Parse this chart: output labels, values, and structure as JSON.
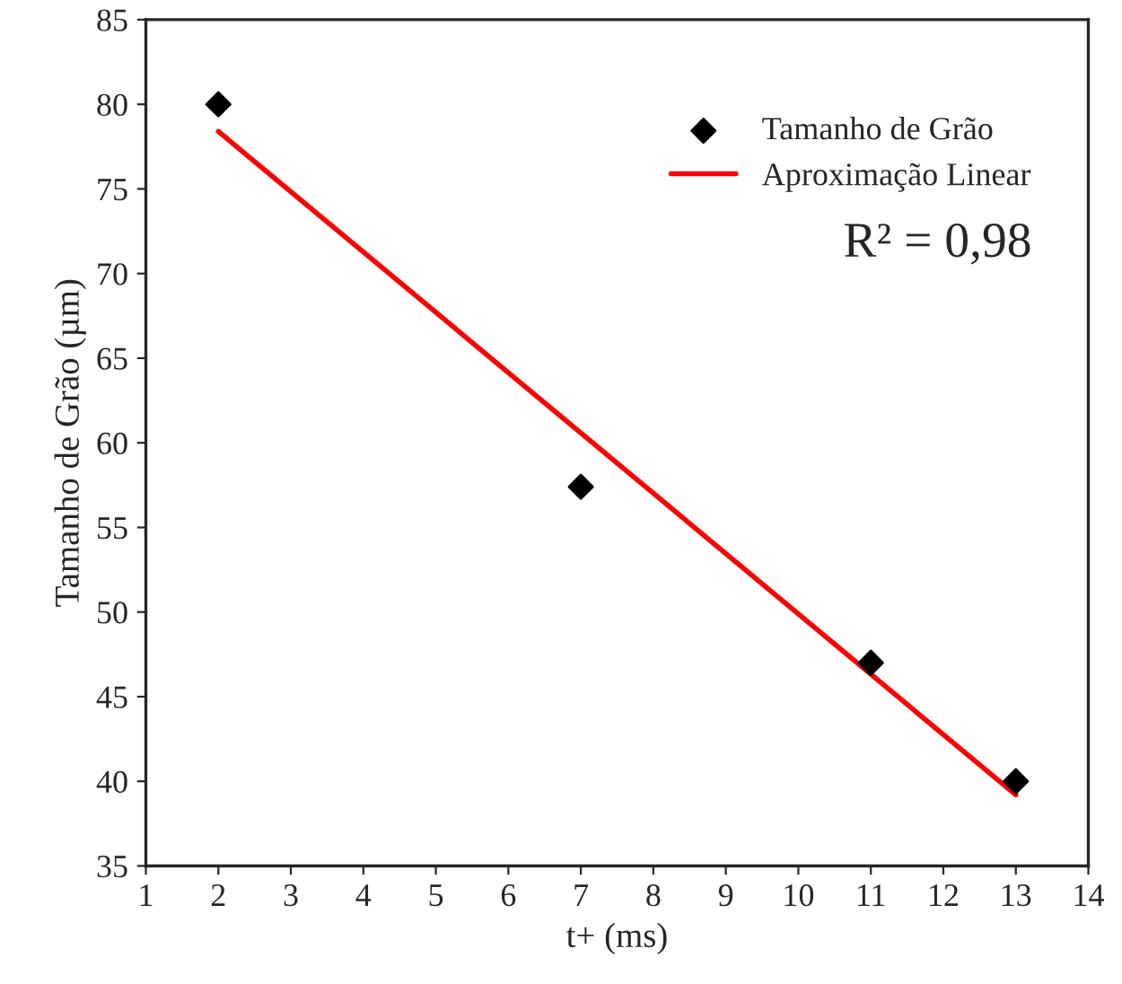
{
  "chart_data": {
    "type": "scatter",
    "xlabel": "t+ (ms)",
    "ylabel": "Tamanho de Grão (µm)",
    "annotations": [
      "R² = 0,98"
    ],
    "series": [
      {
        "name": "Tamanho de Grão",
        "color": "#000000",
        "marker": "diamond",
        "x": [
          2,
          7,
          11,
          13
        ],
        "values": [
          80,
          57.4,
          47,
          40
        ]
      },
      {
        "name": "Aproximação Linear",
        "type": "line",
        "color": "#ff0000",
        "x": [
          2,
          13
        ],
        "values": [
          78.4,
          39.2
        ]
      }
    ],
    "xlim": [
      1,
      14
    ],
    "xticks": [
      1,
      2,
      3,
      4,
      5,
      6,
      7,
      8,
      9,
      10,
      11,
      12,
      13,
      14
    ],
    "ylim": [
      35,
      85
    ],
    "yticks": [
      35,
      40,
      45,
      50,
      55,
      60,
      65,
      70,
      75,
      80,
      85
    ],
    "legend": "top right",
    "grid": false
  }
}
